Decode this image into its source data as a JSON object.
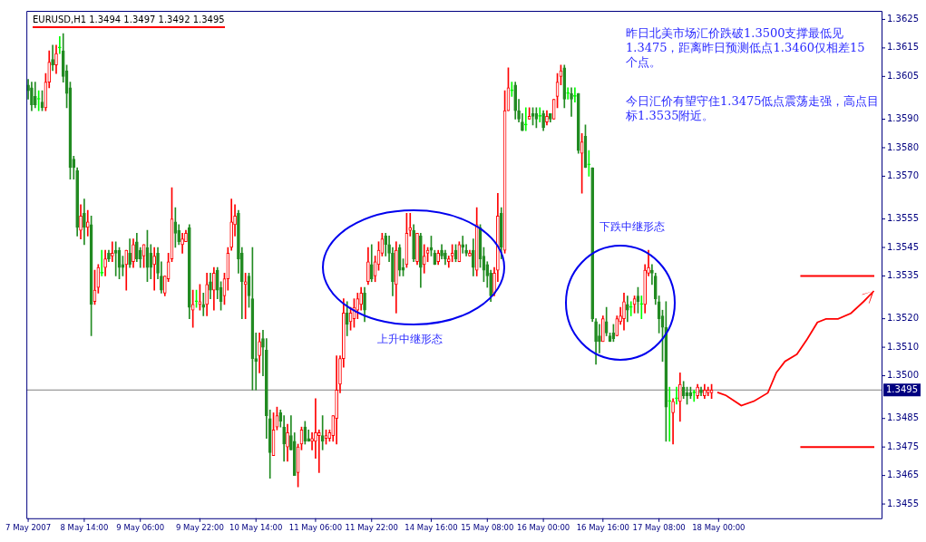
{
  "chart_data": {
    "type": "candlestick",
    "title": "EURUSD,H1  1.3494 1.3497 1.3492 1.3495",
    "categories": [
      "7 May 2007",
      null,
      null,
      null,
      null,
      null,
      null,
      null,
      null,
      null,
      null,
      null,
      null,
      null,
      null,
      null,
      "8 May 14:00",
      null,
      null,
      null,
      null,
      null,
      null,
      null,
      null,
      null,
      null,
      null,
      null,
      null,
      null,
      null,
      "9 May 06:00",
      null,
      null,
      null,
      null,
      null,
      null,
      null,
      null,
      null,
      null,
      null,
      null,
      null,
      null,
      null,
      null,
      "9 May 22:00",
      null,
      null,
      null,
      null,
      null,
      null,
      null,
      null,
      null,
      null,
      null,
      null,
      null,
      null,
      null,
      "10 May 14:00",
      null,
      null,
      null,
      null,
      null,
      null,
      null,
      null,
      null,
      null,
      null,
      null,
      null,
      null,
      null,
      null,
      "11 May 06:00",
      null,
      null,
      null,
      null,
      null,
      null,
      null,
      null,
      null,
      null,
      null,
      null,
      null,
      null,
      null,
      "11 May 22:00",
      null,
      null,
      null,
      null,
      null,
      null,
      null,
      null,
      null,
      null,
      null,
      null,
      null,
      null,
      null,
      null,
      "14 May 16:00",
      null,
      null,
      null,
      null,
      null,
      null,
      null,
      null,
      null,
      null,
      null,
      null,
      null,
      null,
      null,
      "15 May 08:00",
      null,
      null,
      null,
      null,
      null,
      null,
      null,
      null,
      null,
      null,
      null,
      null,
      null,
      null,
      null,
      "16 May 00:00",
      null,
      null,
      null,
      null,
      null,
      null,
      null,
      null,
      null,
      null,
      null,
      null,
      null,
      null,
      null,
      null,
      "16 May 16:00",
      null,
      null,
      null,
      null,
      null,
      null,
      null,
      null,
      null,
      null,
      null,
      null,
      null,
      null,
      null,
      "17 May 08:00",
      null,
      null,
      null,
      null,
      null,
      null,
      null,
      null,
      null,
      null,
      null,
      null,
      null,
      null,
      null,
      null,
      "18 May 00:00",
      null,
      null,
      null,
      null,
      null,
      null,
      null,
      null,
      null,
      null,
      null,
      null,
      null,
      null,
      null,
      null,
      null,
      null,
      null,
      null,
      null,
      null,
      null,
      null,
      null,
      null,
      null,
      null,
      null,
      null,
      null,
      null,
      null,
      null,
      null,
      null,
      null,
      null,
      null,
      null,
      null,
      null,
      null,
      null,
      null,
      null
    ],
    "ohlc": [
      [
        1.3602,
        1.3604,
        1.3597,
        1.36
      ],
      [
        1.3601,
        1.3603,
        1.3593,
        1.3595
      ],
      [
        1.3598,
        1.3603,
        1.3594,
        1.3595
      ],
      [
        1.3597,
        1.36,
        1.3593,
        1.3597
      ],
      [
        1.3596,
        1.36,
        1.3593,
        1.3594
      ],
      [
        1.3594,
        1.3606,
        1.3593,
        1.3603
      ],
      [
        1.3603,
        1.3614,
        1.3601,
        1.361
      ],
      [
        1.3611,
        1.3616,
        1.3607,
        1.3609
      ],
      [
        1.3609,
        1.3616,
        1.3606,
        1.3613
      ],
      [
        1.3615,
        1.3619,
        1.3613,
        1.3615
      ],
      [
        1.3614,
        1.362,
        1.3603,
        1.3605
      ],
      [
        1.3607,
        1.3609,
        1.3594,
        1.3599
      ],
      [
        1.3601,
        1.3603,
        1.3569,
        1.3573
      ],
      [
        1.3576,
        1.3577,
        1.3569,
        1.3573
      ],
      [
        1.3572,
        1.3573,
        1.3549,
        1.3552
      ],
      [
        1.3551,
        1.356,
        1.3548,
        1.3556
      ],
      [
        1.3557,
        1.3562,
        1.3546,
        1.3552
      ],
      [
        1.3552,
        1.3558,
        1.3549,
        1.3554
      ],
      [
        1.3553,
        1.3556,
        1.3514,
        1.3525
      ],
      [
        1.3526,
        1.3537,
        1.3525,
        1.353
      ],
      [
        1.3531,
        1.3539,
        1.3529,
        1.3538
      ],
      [
        1.3536,
        1.3544,
        1.3535,
        1.3536
      ],
      [
        1.3538,
        1.3544,
        1.3535,
        1.3541
      ],
      [
        1.3543,
        1.3544,
        1.354,
        1.3541
      ],
      [
        1.3542,
        1.3547,
        1.354,
        1.3543
      ],
      [
        1.3544,
        1.3547,
        1.3535,
        1.3543
      ],
      [
        1.3544,
        1.3545,
        1.3534,
        1.3538
      ],
      [
        1.3539,
        1.3542,
        1.3535,
        1.3538
      ],
      [
        1.3539,
        1.3544,
        1.353,
        1.3544
      ],
      [
        1.3543,
        1.3548,
        1.3538,
        1.3539
      ],
      [
        1.354,
        1.3548,
        1.3538,
        1.3546
      ],
      [
        1.3547,
        1.355,
        1.354,
        1.3541
      ],
      [
        1.3544,
        1.3545,
        1.3538,
        1.3541
      ],
      [
        1.3542,
        1.3546,
        1.3538,
        1.3546
      ],
      [
        1.3545,
        1.3551,
        1.3533,
        1.3538
      ],
      [
        1.3543,
        1.3546,
        1.3534,
        1.3538
      ],
      [
        1.3539,
        1.3545,
        1.353,
        1.3542
      ],
      [
        1.3543,
        1.3545,
        1.3534,
        1.3536
      ],
      [
        1.3535,
        1.354,
        1.3529,
        1.353
      ],
      [
        1.3529,
        1.3535,
        1.3528,
        1.3535
      ],
      [
        1.3534,
        1.3543,
        1.3533,
        1.354
      ],
      [
        1.3541,
        1.3566,
        1.354,
        1.3555
      ],
      [
        1.3554,
        1.3559,
        1.3545,
        1.355
      ],
      [
        1.3551,
        1.3553,
        1.3546,
        1.3547
      ],
      [
        1.3546,
        1.355,
        1.3543,
        1.3548
      ],
      [
        1.3547,
        1.3551,
        1.3547,
        1.355
      ],
      [
        1.3552,
        1.3553,
        1.352,
        1.3524
      ],
      [
        1.3523,
        1.353,
        1.3517,
        1.3525
      ],
      [
        1.3526,
        1.353,
        1.3524,
        1.3526
      ],
      [
        1.3525,
        1.3532,
        1.3523,
        1.3526
      ],
      [
        1.3525,
        1.3529,
        1.3521,
        1.3524
      ],
      [
        1.3525,
        1.3536,
        1.3521,
        1.3532
      ],
      [
        1.3533,
        1.3536,
        1.3527,
        1.353
      ],
      [
        1.353,
        1.3538,
        1.3523,
        1.3536
      ],
      [
        1.3537,
        1.3538,
        1.3527,
        1.353
      ],
      [
        1.3531,
        1.3533,
        1.3523,
        1.3526
      ],
      [
        1.3528,
        1.3536,
        1.3525,
        1.3534
      ],
      [
        1.3534,
        1.3545,
        1.353,
        1.3543
      ],
      [
        1.3545,
        1.3562,
        1.3544,
        1.3554
      ],
      [
        1.3553,
        1.356,
        1.3549,
        1.3556
      ],
      [
        1.3557,
        1.3558,
        1.3536,
        1.3541
      ],
      [
        1.3543,
        1.3545,
        1.352,
        1.3533
      ],
      [
        1.3532,
        1.3536,
        1.352,
        1.3533
      ],
      [
        1.3535,
        1.3536,
        1.3524,
        1.3528
      ],
      [
        1.3527,
        1.3545,
        1.3495,
        1.3506
      ],
      [
        1.3506,
        1.3515,
        1.3495,
        1.3505
      ],
      [
        1.3507,
        1.3515,
        1.3501,
        1.3512
      ],
      [
        1.3513,
        1.3516,
        1.35,
        1.351
      ],
      [
        1.3509,
        1.3513,
        1.3478,
        1.3486
      ],
      [
        1.3485,
        1.3488,
        1.3464,
        1.3473
      ],
      [
        1.3472,
        1.3487,
        1.3472,
        1.3481
      ],
      [
        1.3482,
        1.3489,
        1.3481,
        1.3486
      ],
      [
        1.3487,
        1.3488,
        1.3482,
        1.3484
      ],
      [
        1.3482,
        1.3486,
        1.347,
        1.3476
      ],
      [
        1.3475,
        1.3483,
        1.347,
        1.348
      ],
      [
        1.3479,
        1.3486,
        1.3474,
        1.3474
      ],
      [
        1.3477,
        1.348,
        1.3465,
        1.3465
      ],
      [
        1.3466,
        1.3476,
        1.3461,
        1.3475
      ],
      [
        1.3476,
        1.3482,
        1.3474,
        1.3481
      ],
      [
        1.3482,
        1.3484,
        1.3476,
        1.3477
      ],
      [
        1.3478,
        1.3481,
        1.3477,
        1.3477
      ],
      [
        1.3477,
        1.348,
        1.3474,
        1.3478
      ],
      [
        1.3477,
        1.3492,
        1.3471,
        1.348
      ],
      [
        1.3479,
        1.3481,
        1.3466,
        1.348
      ],
      [
        1.3479,
        1.3486,
        1.3474,
        1.3477
      ],
      [
        1.3478,
        1.3481,
        1.3476,
        1.3479
      ],
      [
        1.3478,
        1.3481,
        1.3477,
        1.348
      ],
      [
        1.3479,
        1.3486,
        1.3477,
        1.3486
      ],
      [
        1.3485,
        1.3507,
        1.3476,
        1.3495
      ],
      [
        1.3497,
        1.3507,
        1.3494,
        1.3506
      ],
      [
        1.3506,
        1.3527,
        1.3503,
        1.3522
      ],
      [
        1.3522,
        1.3526,
        1.3514,
        1.3518
      ],
      [
        1.3519,
        1.3524,
        1.3516,
        1.3522
      ],
      [
        1.352,
        1.3527,
        1.3517,
        1.3524
      ],
      [
        1.3523,
        1.3529,
        1.352,
        1.3527
      ],
      [
        1.3525,
        1.3531,
        1.3523,
        1.3529
      ],
      [
        1.3529,
        1.3531,
        1.3519,
        1.3523
      ],
      [
        1.3533,
        1.3545,
        1.3532,
        1.354
      ],
      [
        1.3539,
        1.3546,
        1.3533,
        1.3534
      ],
      [
        1.3535,
        1.3542,
        1.3533,
        1.354
      ],
      [
        1.3539,
        1.3547,
        1.3537,
        1.3544
      ],
      [
        1.3543,
        1.355,
        1.3542,
        1.3548
      ],
      [
        1.3549,
        1.355,
        1.3542,
        1.3546
      ],
      [
        1.3546,
        1.3549,
        1.354,
        1.3543
      ],
      [
        1.3543,
        1.3545,
        1.3528,
        1.3533
      ],
      [
        1.3532,
        1.3547,
        1.3522,
        1.3544
      ],
      [
        1.3545,
        1.3546,
        1.3535,
        1.3537
      ],
      [
        1.3538,
        1.3541,
        1.3535,
        1.3537
      ],
      [
        1.3539,
        1.3557,
        1.3538,
        1.355
      ],
      [
        1.3551,
        1.3557,
        1.3549,
        1.3552
      ],
      [
        1.3551,
        1.3553,
        1.354,
        1.3541
      ],
      [
        1.354,
        1.355,
        1.3539,
        1.355
      ],
      [
        1.3549,
        1.355,
        1.3531,
        1.3538
      ],
      [
        1.3539,
        1.3546,
        1.3536,
        1.3542
      ],
      [
        1.3543,
        1.3545,
        1.354,
        1.3544
      ],
      [
        1.3545,
        1.3549,
        1.3542,
        1.3544
      ],
      [
        1.3543,
        1.3544,
        1.3539,
        1.3539
      ],
      [
        1.354,
        1.3544,
        1.3539,
        1.3543
      ],
      [
        1.3544,
        1.3546,
        1.3541,
        1.3542
      ],
      [
        1.3543,
        1.3544,
        1.3539,
        1.3541
      ],
      [
        1.354,
        1.3542,
        1.3538,
        1.3541
      ],
      [
        1.3542,
        1.3546,
        1.354,
        1.3543
      ],
      [
        1.3544,
        1.3546,
        1.354,
        1.3541
      ],
      [
        1.354,
        1.3547,
        1.354,
        1.3546
      ],
      [
        1.3546,
        1.3549,
        1.3543,
        1.3545
      ],
      [
        1.3544,
        1.3546,
        1.3542,
        1.3543
      ],
      [
        1.3542,
        1.3544,
        1.3542,
        1.3543
      ],
      [
        1.3544,
        1.3548,
        1.3535,
        1.3538
      ],
      [
        1.3537,
        1.3559,
        1.3535,
        1.3553
      ],
      [
        1.3552,
        1.3553,
        1.3538,
        1.3541
      ],
      [
        1.3542,
        1.3545,
        1.3533,
        1.3537
      ],
      [
        1.3539,
        1.354,
        1.3531,
        1.3535
      ],
      [
        1.3536,
        1.3537,
        1.3526,
        1.3528
      ],
      [
        1.3529,
        1.3538,
        1.3528,
        1.3536
      ],
      [
        1.3537,
        1.3564,
        1.3533,
        1.3556
      ],
      [
        1.3557,
        1.3559,
        1.3541,
        1.3545
      ],
      [
        1.3544,
        1.36,
        1.3543,
        1.3593
      ],
      [
        1.3593,
        1.3608,
        1.3593,
        1.3601
      ],
      [
        1.36,
        1.3603,
        1.3598,
        1.36
      ],
      [
        1.3602,
        1.3603,
        1.359,
        1.3593
      ],
      [
        1.3593,
        1.3597,
        1.3589,
        1.359
      ],
      [
        1.3589,
        1.3592,
        1.3586,
        1.3586
      ],
      [
        1.3588,
        1.3594,
        1.3586,
        1.3588
      ],
      [
        1.359,
        1.3594,
        1.359,
        1.3591
      ],
      [
        1.3592,
        1.3594,
        1.3588,
        1.3591
      ],
      [
        1.3592,
        1.3594,
        1.3587,
        1.359
      ],
      [
        1.3591,
        1.3594,
        1.3589,
        1.3591
      ],
      [
        1.3592,
        1.3593,
        1.3586,
        1.3587
      ],
      [
        1.3589,
        1.3593,
        1.3588,
        1.3591
      ],
      [
        1.3592,
        1.3592,
        1.3589,
        1.359
      ],
      [
        1.359,
        1.3597,
        1.359,
        1.3597
      ],
      [
        1.3598,
        1.3606,
        1.3594,
        1.3603
      ],
      [
        1.3605,
        1.3609,
        1.3602,
        1.3607
      ],
      [
        1.3608,
        1.3609,
        1.3594,
        1.3597
      ],
      [
        1.3599,
        1.3601,
        1.3597,
        1.3599
      ],
      [
        1.3599,
        1.3601,
        1.3591,
        1.3597
      ],
      [
        1.3598,
        1.3601,
        1.3596,
        1.3598
      ],
      [
        1.3599,
        1.3599,
        1.3578,
        1.3579
      ],
      [
        1.3578,
        1.3585,
        1.3564,
        1.3582
      ],
      [
        1.3584,
        1.3588,
        1.3573,
        1.3573
      ],
      [
        1.3574,
        1.3579,
        1.357,
        1.3574
      ],
      [
        1.3573,
        1.3573,
        1.3519,
        1.352
      ],
      [
        1.3519,
        1.352,
        1.3504,
        1.3512
      ],
      [
        1.3514,
        1.3518,
        1.3508,
        1.3512
      ],
      [
        1.3512,
        1.3521,
        1.3512,
        1.352
      ],
      [
        1.3519,
        1.3524,
        1.3514,
        1.3515
      ],
      [
        1.3514,
        1.3515,
        1.3512,
        1.3512
      ],
      [
        1.3515,
        1.3518,
        1.3512,
        1.3513
      ],
      [
        1.3514,
        1.3521,
        1.3514,
        1.352
      ],
      [
        1.3519,
        1.3524,
        1.3518,
        1.3521
      ],
      [
        1.352,
        1.3529,
        1.3516,
        1.3526
      ],
      [
        1.3525,
        1.3528,
        1.3519,
        1.3523
      ],
      [
        1.3524,
        1.3526,
        1.3521,
        1.3524
      ],
      [
        1.3525,
        1.3528,
        1.3522,
        1.3527
      ],
      [
        1.3528,
        1.3531,
        1.3522,
        1.3526
      ],
      [
        1.3525,
        1.3528,
        1.352,
        1.3525
      ],
      [
        1.3525,
        1.3539,
        1.3522,
        1.3537
      ],
      [
        1.3536,
        1.3544,
        1.3535,
        1.3538
      ],
      [
        1.3537,
        1.3539,
        1.3532,
        1.3536
      ],
      [
        1.3535,
        1.3536,
        1.3525,
        1.3527
      ],
      [
        1.3526,
        1.3528,
        1.3515,
        1.352
      ],
      [
        1.3521,
        1.3523,
        1.3505,
        1.3517
      ],
      [
        1.3517,
        1.3526,
        1.3477,
        1.3489
      ],
      [
        1.3491,
        1.3496,
        1.3477,
        1.3491
      ],
      [
        1.3487,
        1.3492,
        1.3476,
        1.3491
      ],
      [
        1.3492,
        1.3496,
        1.349,
        1.3492
      ],
      [
        1.3491,
        1.3501,
        1.3484,
        1.3497
      ],
      [
        1.3496,
        1.3498,
        1.3492,
        1.3493
      ],
      [
        1.3494,
        1.3496,
        1.349,
        1.3493
      ],
      [
        1.3494,
        1.3496,
        1.3492,
        1.3493
      ],
      [
        1.3494,
        1.3495,
        1.3491,
        1.3494
      ],
      [
        1.3493,
        1.3497,
        1.3492,
        1.3496
      ],
      [
        1.3495,
        1.3496,
        1.3493,
        1.3494
      ],
      [
        1.3493,
        1.3497,
        1.3492,
        1.3495
      ],
      [
        1.3494,
        1.3496,
        1.3493,
        1.3495
      ],
      [
        1.3494,
        1.3497,
        1.3492,
        1.3495
      ],
      null,
      null,
      null,
      null,
      null,
      null,
      null,
      null,
      null,
      null,
      null,
      null,
      null,
      null,
      null,
      null,
      null,
      null,
      null,
      null,
      null,
      null,
      null,
      null,
      null,
      null,
      null,
      null,
      null,
      null,
      null,
      null,
      null,
      null,
      null,
      null,
      null,
      null,
      null,
      null,
      null,
      null,
      null,
      null,
      null,
      null,
      null,
      null
    ],
    "colors": [
      "#228b22",
      "#228b22",
      "#228b22",
      "#00ff00",
      "#228b22",
      "#ff0000",
      "#ff0000",
      "#228b22",
      "#ff0000",
      "#00ff00",
      "#228b22",
      "#228b22",
      "#228b22",
      "#228b22",
      "#228b22",
      "#ff0000",
      "#228b22",
      "#ff0000",
      "#228b22",
      "#ff0000",
      "#ff0000",
      "#00ff00",
      "#ff0000",
      "#228b22",
      "#ff0000",
      "#228b22",
      "#228b22",
      "#228b22",
      "#ff0000",
      "#228b22",
      "#ff0000",
      "#228b22",
      "#228b22",
      "#ff0000",
      "#228b22",
      "#228b22",
      "#ff0000",
      "#228b22",
      "#228b22",
      "#ff0000",
      "#ff0000",
      "#ff0000",
      "#228b22",
      "#228b22",
      "#ff0000",
      "#ff0000",
      "#228b22",
      "#ff0000",
      "#00ff00",
      "#ff0000",
      "#228b22",
      "#ff0000",
      "#228b22",
      "#ff0000",
      "#228b22",
      "#228b22",
      "#ff0000",
      "#ff0000",
      "#ff0000",
      "#ff0000",
      "#228b22",
      "#228b22",
      "#ff0000",
      "#228b22",
      "#228b22",
      "#228b22",
      "#ff0000",
      "#228b22",
      "#228b22",
      "#228b22",
      "#ff0000",
      "#ff0000",
      "#228b22",
      "#228b22",
      "#ff0000",
      "#228b22",
      "#228b22",
      "#ff0000",
      "#ff0000",
      "#228b22",
      "#228b22",
      "#ff0000",
      "#ff0000",
      "#ff0000",
      "#228b22",
      "#ff0000",
      "#ff0000",
      "#ff0000",
      "#ff0000",
      "#ff0000",
      "#ff0000",
      "#228b22",
      "#ff0000",
      "#ff0000",
      "#ff0000",
      "#ff0000",
      "#228b22",
      "#ff0000",
      "#228b22",
      "#ff0000",
      "#ff0000",
      "#ff0000",
      "#228b22",
      "#228b22",
      "#228b22",
      "#ff0000",
      "#228b22",
      "#228b22",
      "#ff0000",
      "#ff0000",
      "#228b22",
      "#ff0000",
      "#228b22",
      "#ff0000",
      "#ff0000",
      "#228b22",
      "#228b22",
      "#ff0000",
      "#228b22",
      "#228b22",
      "#ff0000",
      "#ff0000",
      "#228b22",
      "#ff0000",
      "#228b22",
      "#228b22",
      "#ff0000",
      "#228b22",
      "#ff0000",
      "#228b22",
      "#228b22",
      "#228b22",
      "#228b22",
      "#ff0000",
      "#ff0000",
      "#228b22",
      "#ff0000",
      "#ff0000",
      "#00ff00",
      "#228b22",
      "#228b22",
      "#228b22",
      "#00ff00",
      "#ff0000",
      "#228b22",
      "#228b22",
      "#00ff00",
      "#228b22",
      "#ff0000",
      "#228b22",
      "#ff0000",
      "#ff0000",
      "#ff0000",
      "#228b22",
      "#00ff00",
      "#228b22",
      "#00ff00",
      "#228b22",
      "#ff0000",
      "#228b22",
      "#00ff00",
      "#228b22",
      "#228b22",
      "#228b22",
      "#ff0000",
      "#228b22",
      "#228b22",
      "#228b22",
      "#ff0000",
      "#ff0000",
      "#ff0000",
      "#228b22",
      "#00ff00",
      "#ff0000",
      "#228b22",
      "#00ff00",
      "#ff0000",
      "#ff0000",
      "#228b22",
      "#228b22",
      "#228b22",
      "#228b22",
      "#228b22",
      "#00ff00",
      "#ff0000",
      "#00ff00",
      "#ff0000",
      "#228b22",
      "#228b22",
      "#228b22",
      "#00ff00",
      "#ff0000",
      "#228b22",
      "#ff0000",
      "#ff0000",
      "#ff0000",
      null,
      null,
      null,
      null,
      null,
      null,
      null,
      null,
      null,
      null,
      null,
      null,
      null,
      null,
      null,
      null,
      null,
      null,
      null,
      null,
      null,
      null,
      null,
      null,
      null,
      null,
      null,
      null,
      null,
      null,
      null,
      null,
      null,
      null,
      null,
      null,
      null,
      null,
      null,
      null,
      null,
      null,
      null,
      null,
      null,
      null,
      null,
      null
    ],
    "ylim": [
      1.345,
      1.3628
    ],
    "yticks": [
      1.3455,
      1.3465,
      1.3475,
      1.3485,
      {
        "value": 1.35,
        "label": "1.3500"
      },
      {
        "value": 1.351,
        "label": "1.3510"
      },
      {
        "value": 1.352,
        "label": "1.3520"
      },
      1.3535,
      1.3545,
      1.3555,
      {
        "value": 1.357,
        "label": "1.3570"
      },
      {
        "value": 1.358,
        "label": "1.3580"
      },
      {
        "value": 1.359,
        "label": "1.3590"
      },
      1.3605,
      1.3615,
      1.3625
    ],
    "ref_lines": [
      {
        "axis": "y",
        "value": 1.3495,
        "label": "1.3495",
        "color": "#808080"
      },
      {
        "axis": "y",
        "value": 1.3535,
        "color": "#ff0000"
      },
      {
        "axis": "y",
        "value": 1.3475,
        "color": "#ff0000"
      }
    ],
    "annotations": [
      "昨日北美市场汇价跌破1.3500支撑最低见1.3475，距离昨日预测低点1.3460仅相差15个点。",
      "今日汇价有望守住1.3475低点震荡走强，高点目标1.3535附近。",
      "上升中继形态",
      "下跌中继形态"
    ]
  }
}
